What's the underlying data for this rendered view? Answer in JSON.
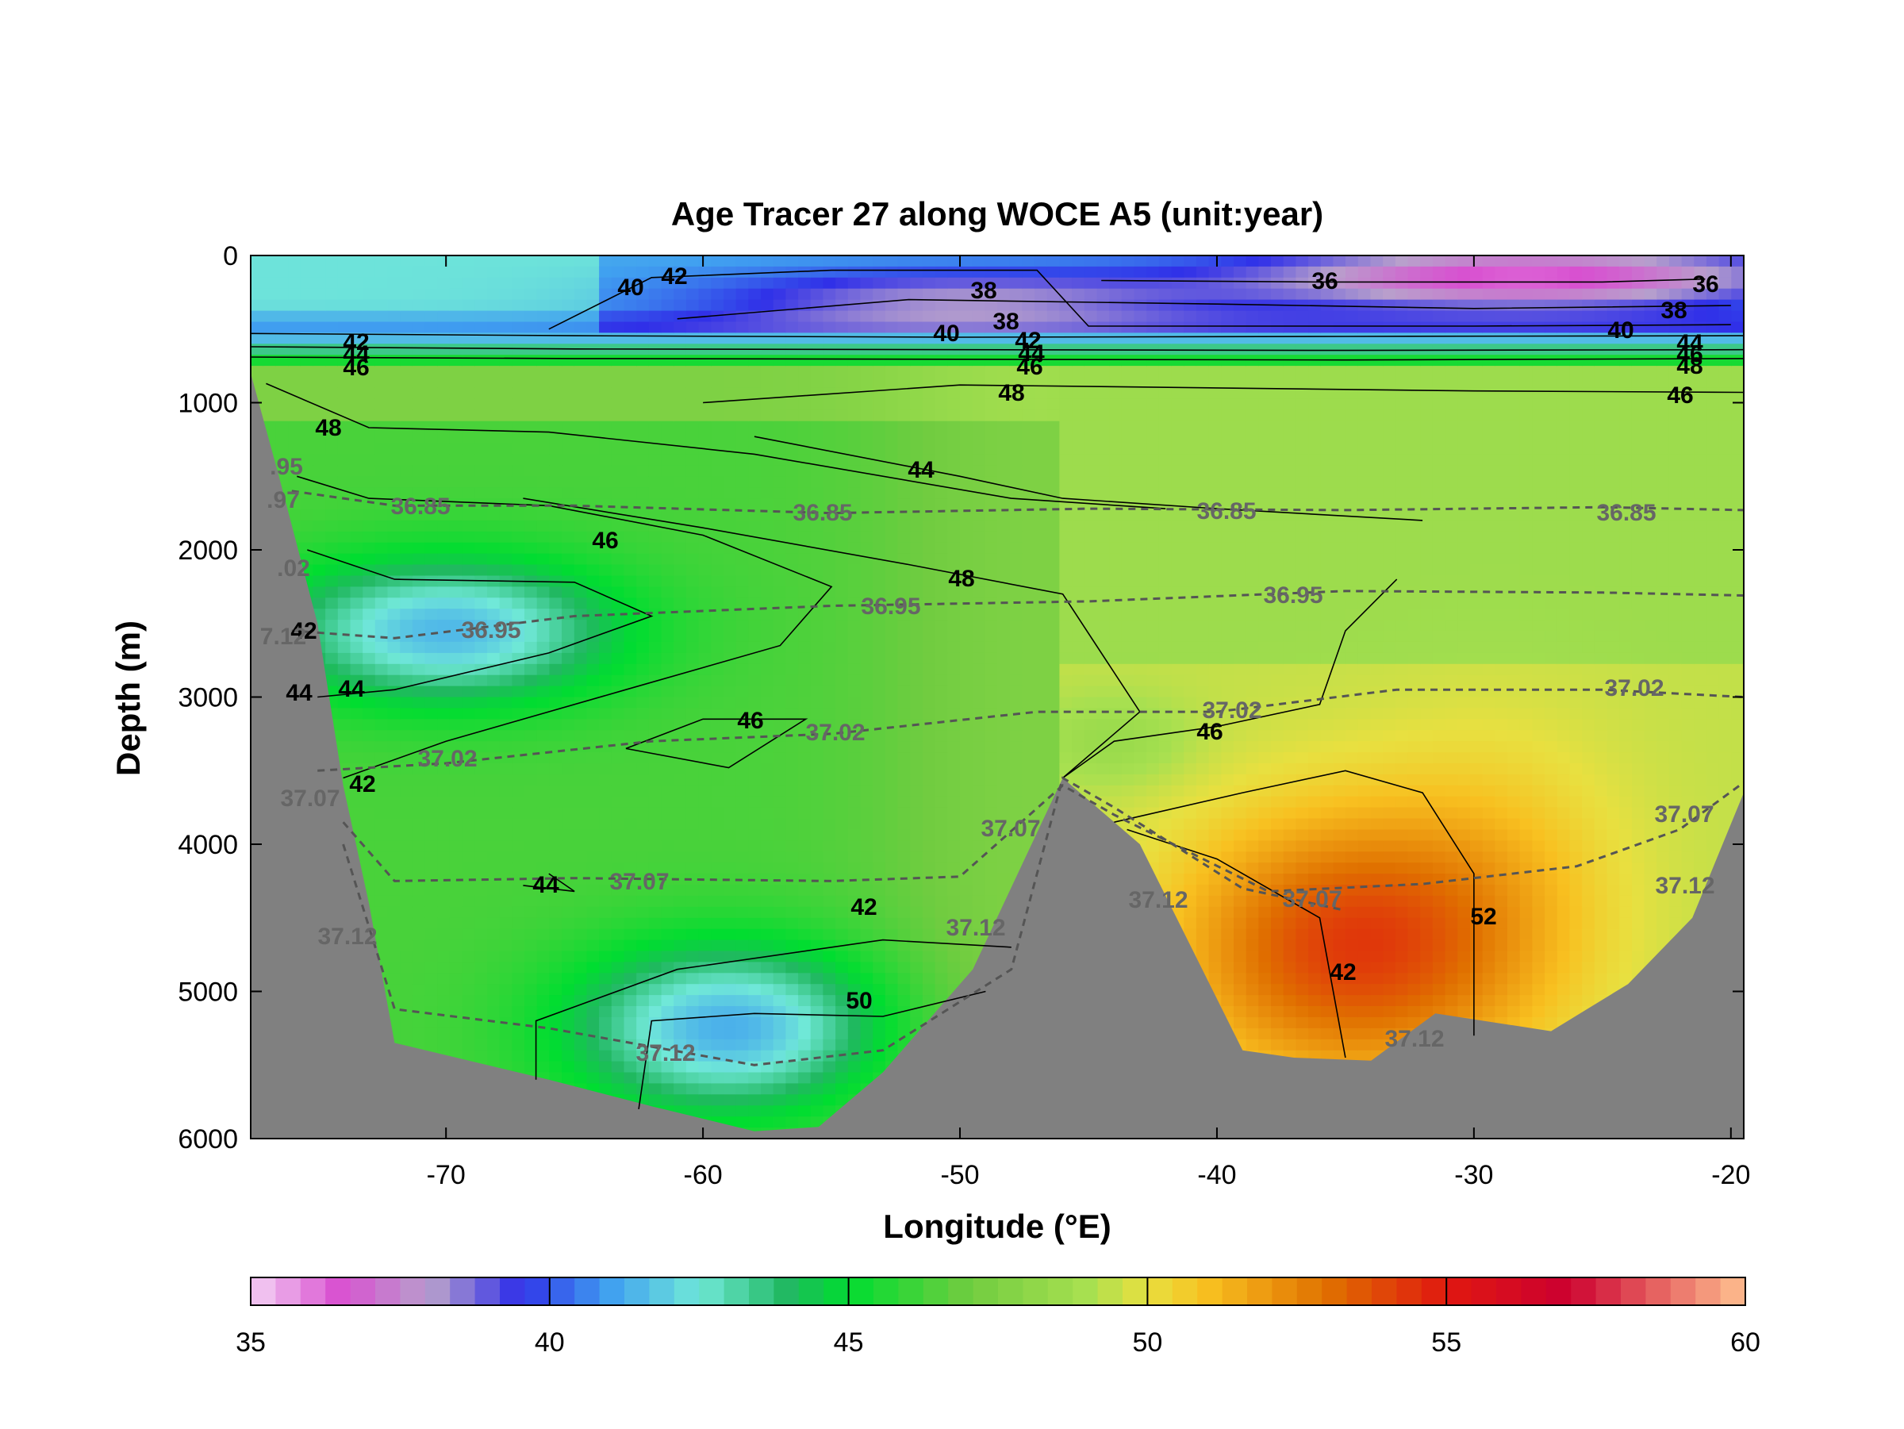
{
  "chart_data": {
    "type": "heatmap",
    "title": "Age Tracer 27 along WOCE A5 (unit:year)",
    "xlabel": "Longitude (°E)",
    "ylabel": "Depth (m)",
    "xlim": [
      -77.6,
      -19.5
    ],
    "ylim": [
      6000,
      0
    ],
    "x_ticks": [
      -70,
      -60,
      -50,
      -40,
      -30,
      -20
    ],
    "y_ticks": [
      0,
      1000,
      2000,
      3000,
      4000,
      5000,
      6000
    ],
    "colorbar": {
      "range": [
        35,
        60
      ],
      "ticks": [
        35,
        40,
        45,
        50,
        55,
        60
      ],
      "stops": [
        {
          "v": 35,
          "c": "#f4d2f4"
        },
        {
          "v": 36.5,
          "c": "#d850d0"
        },
        {
          "v": 38,
          "c": "#b8a0cc"
        },
        {
          "v": 39.5,
          "c": "#3030e8"
        },
        {
          "v": 41,
          "c": "#40a0f0"
        },
        {
          "v": 42.5,
          "c": "#70e8d8"
        },
        {
          "v": 44,
          "c": "#20b860"
        },
        {
          "v": 45,
          "c": "#00dd30"
        },
        {
          "v": 47,
          "c": "#70cc40"
        },
        {
          "v": 49,
          "c": "#a8e050"
        },
        {
          "v": 50,
          "c": "#e8e040"
        },
        {
          "v": 51,
          "c": "#f8c020"
        },
        {
          "v": 53,
          "c": "#e07000"
        },
        {
          "v": 55,
          "c": "#e01810"
        },
        {
          "v": 57,
          "c": "#cc0030"
        },
        {
          "v": 60,
          "c": "#ffc090"
        }
      ]
    },
    "age_contours": [
      {
        "label": "36",
        "points": [
          [
            -44.5,
            170
          ],
          [
            -36,
            180
          ],
          [
            -25,
            180
          ],
          [
            -21,
            160
          ]
        ]
      },
      {
        "label": "38",
        "points": [
          [
            -61,
            430
          ],
          [
            -52,
            300
          ],
          [
            -40,
            330
          ],
          [
            -30,
            360
          ],
          [
            -20,
            340
          ]
        ]
      },
      {
        "label": "40",
        "points": [
          [
            -66,
            500
          ],
          [
            -62,
            150
          ],
          [
            -55,
            100
          ],
          [
            -47,
            100
          ],
          [
            -45,
            480
          ],
          [
            -30,
            480
          ],
          [
            -20,
            470
          ]
        ]
      },
      {
        "label": "42",
        "points": [
          [
            -77.6,
            530
          ],
          [
            -65,
            545
          ],
          [
            -50,
            555
          ],
          [
            -35,
            550
          ],
          [
            -19.5,
            545
          ]
        ]
      },
      {
        "label": "44",
        "points": [
          [
            -77.6,
            620
          ],
          [
            -65,
            635
          ],
          [
            -50,
            640
          ],
          [
            -35,
            645
          ],
          [
            -19.5,
            640
          ]
        ]
      },
      {
        "label": "46",
        "points": [
          [
            -77.6,
            690
          ],
          [
            -65,
            700
          ],
          [
            -50,
            705
          ],
          [
            -35,
            710
          ],
          [
            -19.5,
            700
          ]
        ]
      },
      {
        "label": "48",
        "points": [
          [
            -60,
            1000
          ],
          [
            -50,
            880
          ],
          [
            -40,
            900
          ],
          [
            -30,
            920
          ],
          [
            -19.5,
            930
          ]
        ]
      },
      {
        "label": "46",
        "points": [
          [
            -77,
            870
          ],
          [
            -73,
            1170
          ],
          [
            -66,
            1200
          ],
          [
            -58,
            1350
          ],
          [
            -48,
            1650
          ],
          [
            -42,
            1720
          ]
        ]
      },
      {
        "label": "48",
        "points": [
          [
            -58,
            1230
          ],
          [
            -50,
            1500
          ],
          [
            -46,
            1650
          ],
          [
            -40,
            1720
          ],
          [
            -32,
            1800
          ]
        ]
      },
      {
        "label": "44",
        "points": [
          [
            -75.8,
            1500
          ],
          [
            -73,
            1650
          ],
          [
            -66,
            1700
          ],
          [
            -60,
            1900
          ],
          [
            -55,
            2250
          ],
          [
            -57,
            2650
          ],
          [
            -63,
            2950
          ],
          [
            -70,
            3300
          ],
          [
            -74,
            3550
          ]
        ]
      },
      {
        "label": "42",
        "points": [
          [
            -75.4,
            2000
          ],
          [
            -72,
            2200
          ],
          [
            -65,
            2220
          ],
          [
            -62,
            2450
          ],
          [
            -66,
            2700
          ],
          [
            -72,
            2950
          ],
          [
            -75,
            3000
          ]
        ]
      },
      {
        "label": "46",
        "points": [
          [
            -67,
            1650
          ],
          [
            -60,
            1850
          ],
          [
            -52,
            2100
          ],
          [
            -46,
            2300
          ],
          [
            -43,
            3100
          ],
          [
            -46,
            3550
          ]
        ]
      },
      {
        "label": "48",
        "points": [
          [
            -46,
            3550
          ],
          [
            -44,
            3300
          ],
          [
            -40,
            3200
          ],
          [
            -36,
            3050
          ],
          [
            -35,
            2550
          ],
          [
            -33,
            2200
          ]
        ]
      },
      {
        "label": "46",
        "points": [
          [
            -63,
            3350
          ],
          [
            -60,
            3150
          ],
          [
            -56,
            3150
          ],
          [
            -59,
            3480
          ],
          [
            -63,
            3350
          ]
        ]
      },
      {
        "label": "46",
        "points": [
          [
            -66,
            4200
          ],
          [
            -65,
            4320
          ],
          [
            -67,
            4280
          ]
        ]
      },
      {
        "label": "44",
        "points": [
          [
            -66.5,
            5600
          ],
          [
            -66.5,
            5200
          ],
          [
            -61,
            4850
          ],
          [
            -53,
            4650
          ],
          [
            -48,
            4700
          ]
        ]
      },
      {
        "label": "42",
        "points": [
          [
            -62.5,
            5800
          ],
          [
            -62,
            5200
          ],
          [
            -58,
            5150
          ],
          [
            -53,
            5170
          ],
          [
            -49,
            5000
          ]
        ]
      },
      {
        "label": "50",
        "points": [
          [
            -44,
            3850
          ],
          [
            -39,
            3650
          ],
          [
            -35,
            3500
          ],
          [
            -32,
            3650
          ],
          [
            -30,
            4200
          ],
          [
            -30,
            5300
          ]
        ]
      },
      {
        "label": "52",
        "points": [
          [
            -43.5,
            3900
          ],
          [
            -40,
            4100
          ],
          [
            -36,
            4500
          ],
          [
            -35,
            5450
          ]
        ]
      }
    ],
    "dashed_contours": [
      {
        "label": "36.85",
        "points": [
          [
            -76,
            1600
          ],
          [
            -72,
            1700
          ],
          [
            -65,
            1700
          ],
          [
            -55,
            1750
          ],
          [
            -45,
            1720
          ],
          [
            -35,
            1730
          ],
          [
            -25,
            1710
          ],
          [
            -19.5,
            1730
          ]
        ]
      },
      {
        "label": "36.95",
        "points": [
          [
            -76,
            2550
          ],
          [
            -72,
            2600
          ],
          [
            -65,
            2450
          ],
          [
            -55,
            2380
          ],
          [
            -45,
            2350
          ],
          [
            -35,
            2280
          ],
          [
            -25,
            2290
          ],
          [
            -19.5,
            2310
          ]
        ]
      },
      {
        "label": "37.02",
        "points": [
          [
            -75,
            3500
          ],
          [
            -70,
            3450
          ],
          [
            -62,
            3300
          ],
          [
            -55,
            3250
          ],
          [
            -47,
            3100
          ],
          [
            -40,
            3100
          ],
          [
            -33,
            2950
          ],
          [
            -25,
            2950
          ],
          [
            -19.5,
            3000
          ]
        ]
      },
      {
        "label": "37.07",
        "points": [
          [
            -74,
            3850
          ],
          [
            -72,
            4250
          ],
          [
            -65,
            4230
          ],
          [
            -55,
            4250
          ],
          [
            -50,
            4220
          ],
          [
            -46,
            3600
          ],
          [
            -44,
            3800
          ],
          [
            -38,
            4320
          ],
          [
            -32,
            4270
          ],
          [
            -26,
            4150
          ],
          [
            -22,
            3900
          ],
          [
            -19.5,
            3580
          ]
        ]
      },
      {
        "label": "37.12",
        "points": [
          [
            -74,
            4000
          ],
          [
            -72,
            5120
          ],
          [
            -66,
            5250
          ],
          [
            -58,
            5500
          ],
          [
            -53,
            5400
          ],
          [
            -48,
            4850
          ],
          [
            -46,
            3550
          ],
          [
            -44,
            3750
          ],
          [
            -39,
            4300
          ],
          [
            -35,
            4450
          ]
        ]
      }
    ]
  },
  "contour_label_text": {
    "age": [
      "40",
      "42",
      "38",
      "36",
      "36",
      "38",
      "38",
      "40",
      "40",
      "42",
      "42",
      "44",
      "44",
      "44",
      "46",
      "46",
      "46",
      "48",
      "48",
      "46",
      "48",
      "44",
      "46",
      "48",
      "46",
      "42",
      "44",
      "44",
      "42",
      "46",
      "44",
      "42",
      "50",
      "52",
      "42"
    ],
    "salinity": [
      "36.85",
      "36.85",
      "36.85",
      "36.85",
      "36.95",
      "36.95",
      "36.95",
      "37.02",
      "37.02",
      "37.02",
      "37.02",
      "37.07",
      "37.07",
      "37.07",
      "37.07",
      "37.07",
      "37.12",
      "37.12",
      "37.12",
      "37.12",
      "37.12",
      "37.12",
      ".95",
      ".97",
      ".02",
      "7.12"
    ]
  }
}
